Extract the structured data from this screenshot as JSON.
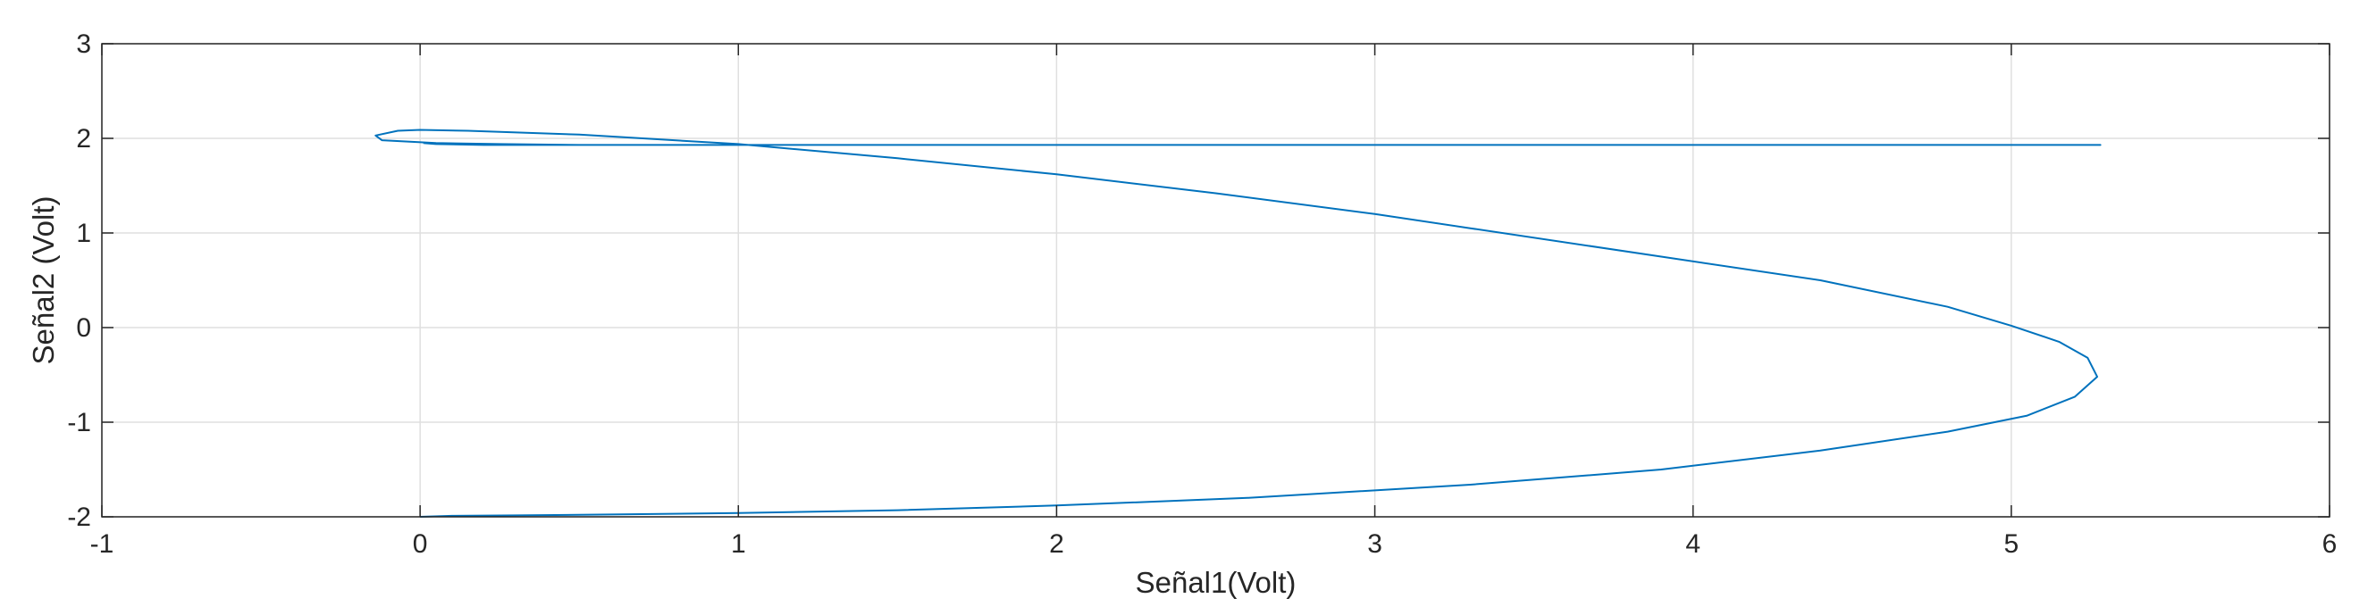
{
  "chart_data": {
    "type": "line",
    "title": "",
    "xlabel": "Señal1(Volt)",
    "ylabel": "Señal2 (Volt)",
    "xlim": [
      -1,
      6
    ],
    "ylim": [
      -2,
      3
    ],
    "xticks": [
      -1,
      0,
      1,
      2,
      3,
      4,
      5,
      6
    ],
    "yticks": [
      -2,
      -1,
      0,
      1,
      2,
      3
    ],
    "xtick_labels": [
      "-1",
      "0",
      "1",
      "2",
      "3",
      "4",
      "5",
      "6"
    ],
    "ytick_labels": [
      "-2",
      "-1",
      "0",
      "1",
      "2",
      "3"
    ],
    "grid": true,
    "box": true,
    "series": [
      {
        "color": "#0072BD",
        "x": [
          0.0,
          0.1,
          0.3,
          0.6,
          1.0,
          1.5,
          2.0,
          2.6,
          3.3,
          3.9,
          4.4,
          4.8,
          5.05,
          5.2,
          5.27,
          5.24,
          5.15,
          5.0,
          4.8,
          4.4,
          3.9,
          3.3,
          3.0,
          2.5,
          2.0,
          1.5,
          1.0,
          0.5,
          0.15,
          0.0,
          -0.07,
          -0.14,
          -0.12,
          0.05,
          0.25,
          0.5,
          0.8,
          1.0,
          1.5,
          2.0,
          2.5,
          3.0,
          3.5,
          4.0,
          4.4,
          4.8,
          5.0,
          5.15,
          5.24,
          5.28,
          5.22,
          5.05,
          4.8,
          4.4,
          4.0,
          3.3,
          2.6,
          2.0,
          1.5,
          1.0,
          0.5,
          0.2,
          0.05,
          0.01
        ],
        "y": [
          -2.0,
          -1.99,
          -1.985,
          -1.975,
          -1.96,
          -1.93,
          -1.88,
          -1.8,
          -1.66,
          -1.5,
          -1.3,
          -1.1,
          -0.93,
          -0.73,
          -0.52,
          -0.32,
          -0.15,
          0.02,
          0.22,
          0.5,
          0.75,
          1.05,
          1.2,
          1.42,
          1.62,
          1.79,
          1.94,
          2.04,
          2.08,
          2.09,
          2.08,
          2.03,
          1.98,
          1.95,
          1.94,
          1.93,
          1.93,
          1.93,
          1.93,
          1.93,
          1.93,
          1.93,
          1.93,
          1.93,
          1.93,
          1.93,
          1.93,
          1.93,
          1.93,
          1.93,
          1.93,
          1.93,
          1.93,
          1.93,
          1.93,
          1.93,
          1.93,
          1.93,
          1.93,
          1.93,
          1.93,
          1.93,
          1.94,
          1.95
        ]
      }
    ]
  }
}
